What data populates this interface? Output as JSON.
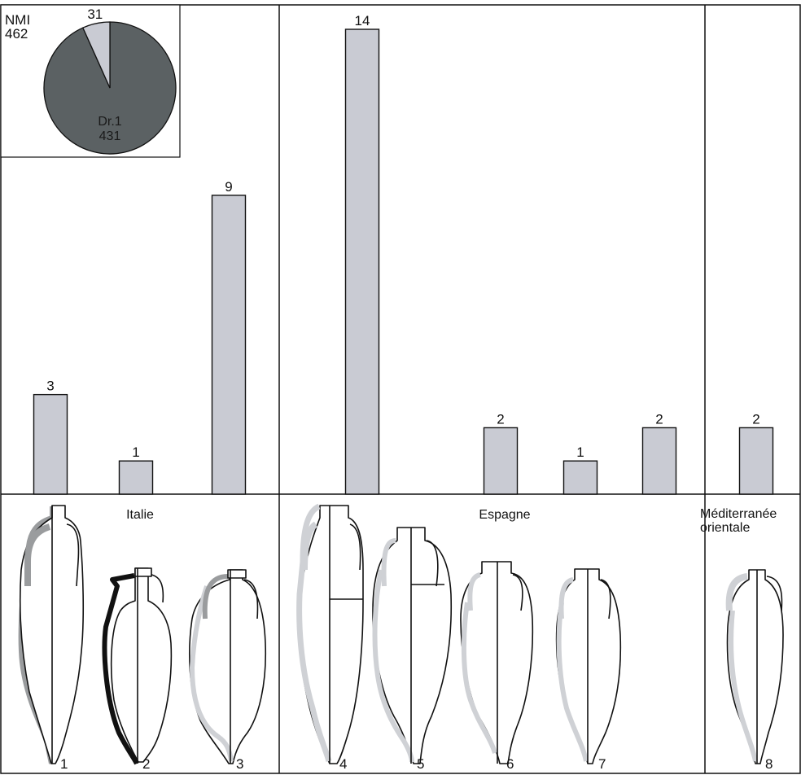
{
  "colors": {
    "bar_fill": "#c9cbd3",
    "pie_major": "#5b6163",
    "pie_minor": "#c9cbd3",
    "outline": "#111111",
    "amphora_handle_grey": "#9a9c9e",
    "amphora_handle_light": "#cfd1d5",
    "amphora_handle_black": "#111111"
  },
  "regions": [
    {
      "label": "Italie"
    },
    {
      "label_lines": [
        "Méditerranée",
        "orientale"
      ]
    },
    {
      "label": "Espagne"
    }
  ],
  "amphora_numbers": [
    "1",
    "2",
    "3",
    "4",
    "5",
    "6",
    "7",
    "8"
  ],
  "chart_data": [
    {
      "type": "bar",
      "categories": [
        "1",
        "2",
        "3",
        "4",
        "5",
        "6",
        "7",
        "8"
      ],
      "values": [
        3,
        1,
        9,
        14,
        2,
        1,
        2,
        2
      ],
      "data_labels": [
        "3",
        "1",
        "9",
        "14",
        "2",
        "1",
        "2",
        "2"
      ],
      "groups": [
        {
          "name": "Italie",
          "categories": [
            "1",
            "2",
            "3"
          ]
        },
        {
          "name": "Espagne",
          "categories": [
            "4",
            "5",
            "6",
            "7"
          ]
        },
        {
          "name": "Méditerranée orientale",
          "categories": [
            "8"
          ]
        }
      ],
      "ylim": [
        0,
        14
      ],
      "grid": false,
      "title": "",
      "xlabel": "",
      "ylabel": ""
    },
    {
      "type": "pie",
      "header_lines": [
        "NMI",
        "462"
      ],
      "total": 462,
      "slices": [
        {
          "label": "Dr.1",
          "value": 431,
          "value_label": "431"
        },
        {
          "label": "",
          "value": 31,
          "value_label": "31"
        }
      ]
    }
  ]
}
